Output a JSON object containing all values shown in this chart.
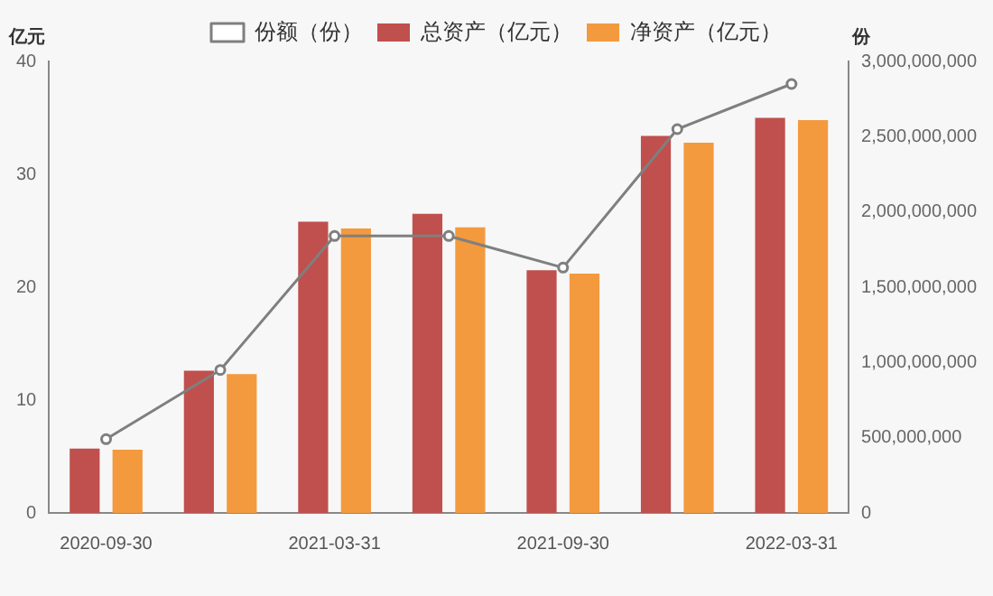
{
  "chart_data": {
    "type": "bar",
    "ylabel": "亿元",
    "y2label": "份",
    "categories": [
      "2020-09-30",
      null,
      "2021-03-31",
      null,
      "2021-09-30",
      null,
      "2022-03-31"
    ],
    "series": [
      {
        "name": "总资产（亿元）",
        "color": "#c0504d",
        "values": [
          5.7,
          12.6,
          25.8,
          26.5,
          21.5,
          33.4,
          35.0
        ]
      },
      {
        "name": "净资产（亿元）",
        "color": "#f39a3e",
        "values": [
          5.6,
          12.3,
          25.2,
          25.3,
          21.2,
          32.8,
          34.8
        ]
      },
      {
        "name": "份额（份）",
        "type": "line",
        "axis": "y2",
        "color": "#7f7f7f",
        "marker": "circle",
        "values": [
          490000000,
          950000000,
          1840000000,
          1840000000,
          1630000000,
          2550000000,
          2850000000
        ]
      }
    ],
    "ylim": [
      0,
      40
    ],
    "yticks": [
      0,
      10,
      20,
      30,
      40
    ],
    "y2lim": [
      0,
      3000000000
    ],
    "y2ticks": [
      {
        "value": 0,
        "label": "0"
      },
      {
        "value": 500000000,
        "label": "500,000,000"
      },
      {
        "value": 1000000000,
        "label": "1,000,000,000"
      },
      {
        "value": 1500000000,
        "label": "1,500,000,000"
      },
      {
        "value": 2000000000,
        "label": "2,000,000,000"
      },
      {
        "value": 2500000000,
        "label": "2,500,000,000"
      },
      {
        "value": 3000000000,
        "label": "3,000,000,000"
      }
    ],
    "grid": false,
    "legend": "top"
  }
}
